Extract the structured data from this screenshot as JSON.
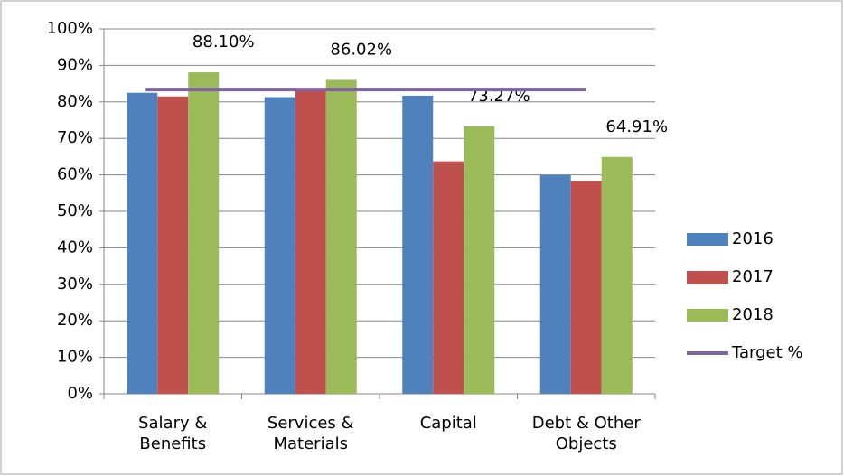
{
  "chart_data": {
    "type": "bar",
    "categories": [
      "Salary & Benefits",
      "Services & Materials",
      "Capital",
      "Debt & Other Objects"
    ],
    "series": [
      {
        "name": "2016",
        "color": "#4f81bd",
        "values": [
          82.5,
          81.3,
          81.7,
          60.0
        ]
      },
      {
        "name": "2017",
        "color": "#c0504d",
        "values": [
          81.5,
          83.3,
          63.7,
          58.4
        ]
      },
      {
        "name": "2018",
        "color": "#9bbb59",
        "values": [
          88.1,
          86.02,
          73.27,
          64.91
        ],
        "value_labels": [
          "88.10%",
          "86.02%",
          "73.27%",
          "64.91%"
        ]
      },
      {
        "name": "Target %",
        "color": "#8064a2",
        "type": "line",
        "values": [
          83.4,
          83.4,
          83.4,
          83.4
        ]
      }
    ],
    "ylim": [
      0,
      100
    ],
    "yticks": [
      {
        "value": 0,
        "label": "0%"
      },
      {
        "value": 10,
        "label": "10%"
      },
      {
        "value": 20,
        "label": "20%"
      },
      {
        "value": 30,
        "label": "30%"
      },
      {
        "value": 40,
        "label": "40%"
      },
      {
        "value": 50,
        "label": "50%"
      },
      {
        "value": 60,
        "label": "60%"
      },
      {
        "value": 70,
        "label": "70%"
      },
      {
        "value": 80,
        "label": "80%"
      },
      {
        "value": 90,
        "label": "90%"
      },
      {
        "value": 100,
        "label": "100%"
      }
    ],
    "grid": true,
    "legend": "right"
  }
}
